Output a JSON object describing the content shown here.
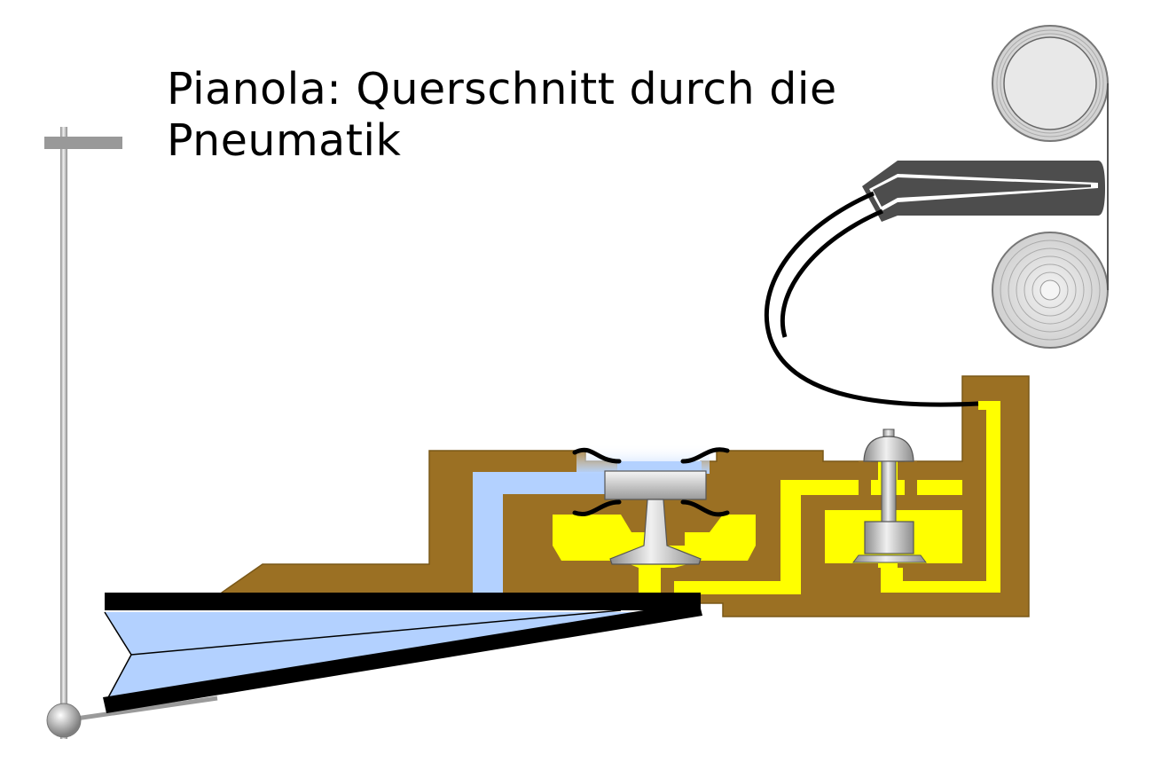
{
  "title": {
    "line1": "Pianola: Querschnitt durch die",
    "line2": "Pneumatik"
  },
  "colors": {
    "wood": "#9b7023",
    "wood_edge": "#7a5818",
    "high_pressure_air": "#ffff00",
    "low_pressure_air": "#b3d1ff",
    "metal": "#bfbfbf",
    "tracker_bar": "#4d4d4d",
    "hose": "#000000",
    "roll": "#e6e6e6"
  },
  "icons": {
    "roll_top": "paper-roll-icon",
    "roll_bottom": "paper-roll-icon",
    "valve": "valve-icon"
  }
}
